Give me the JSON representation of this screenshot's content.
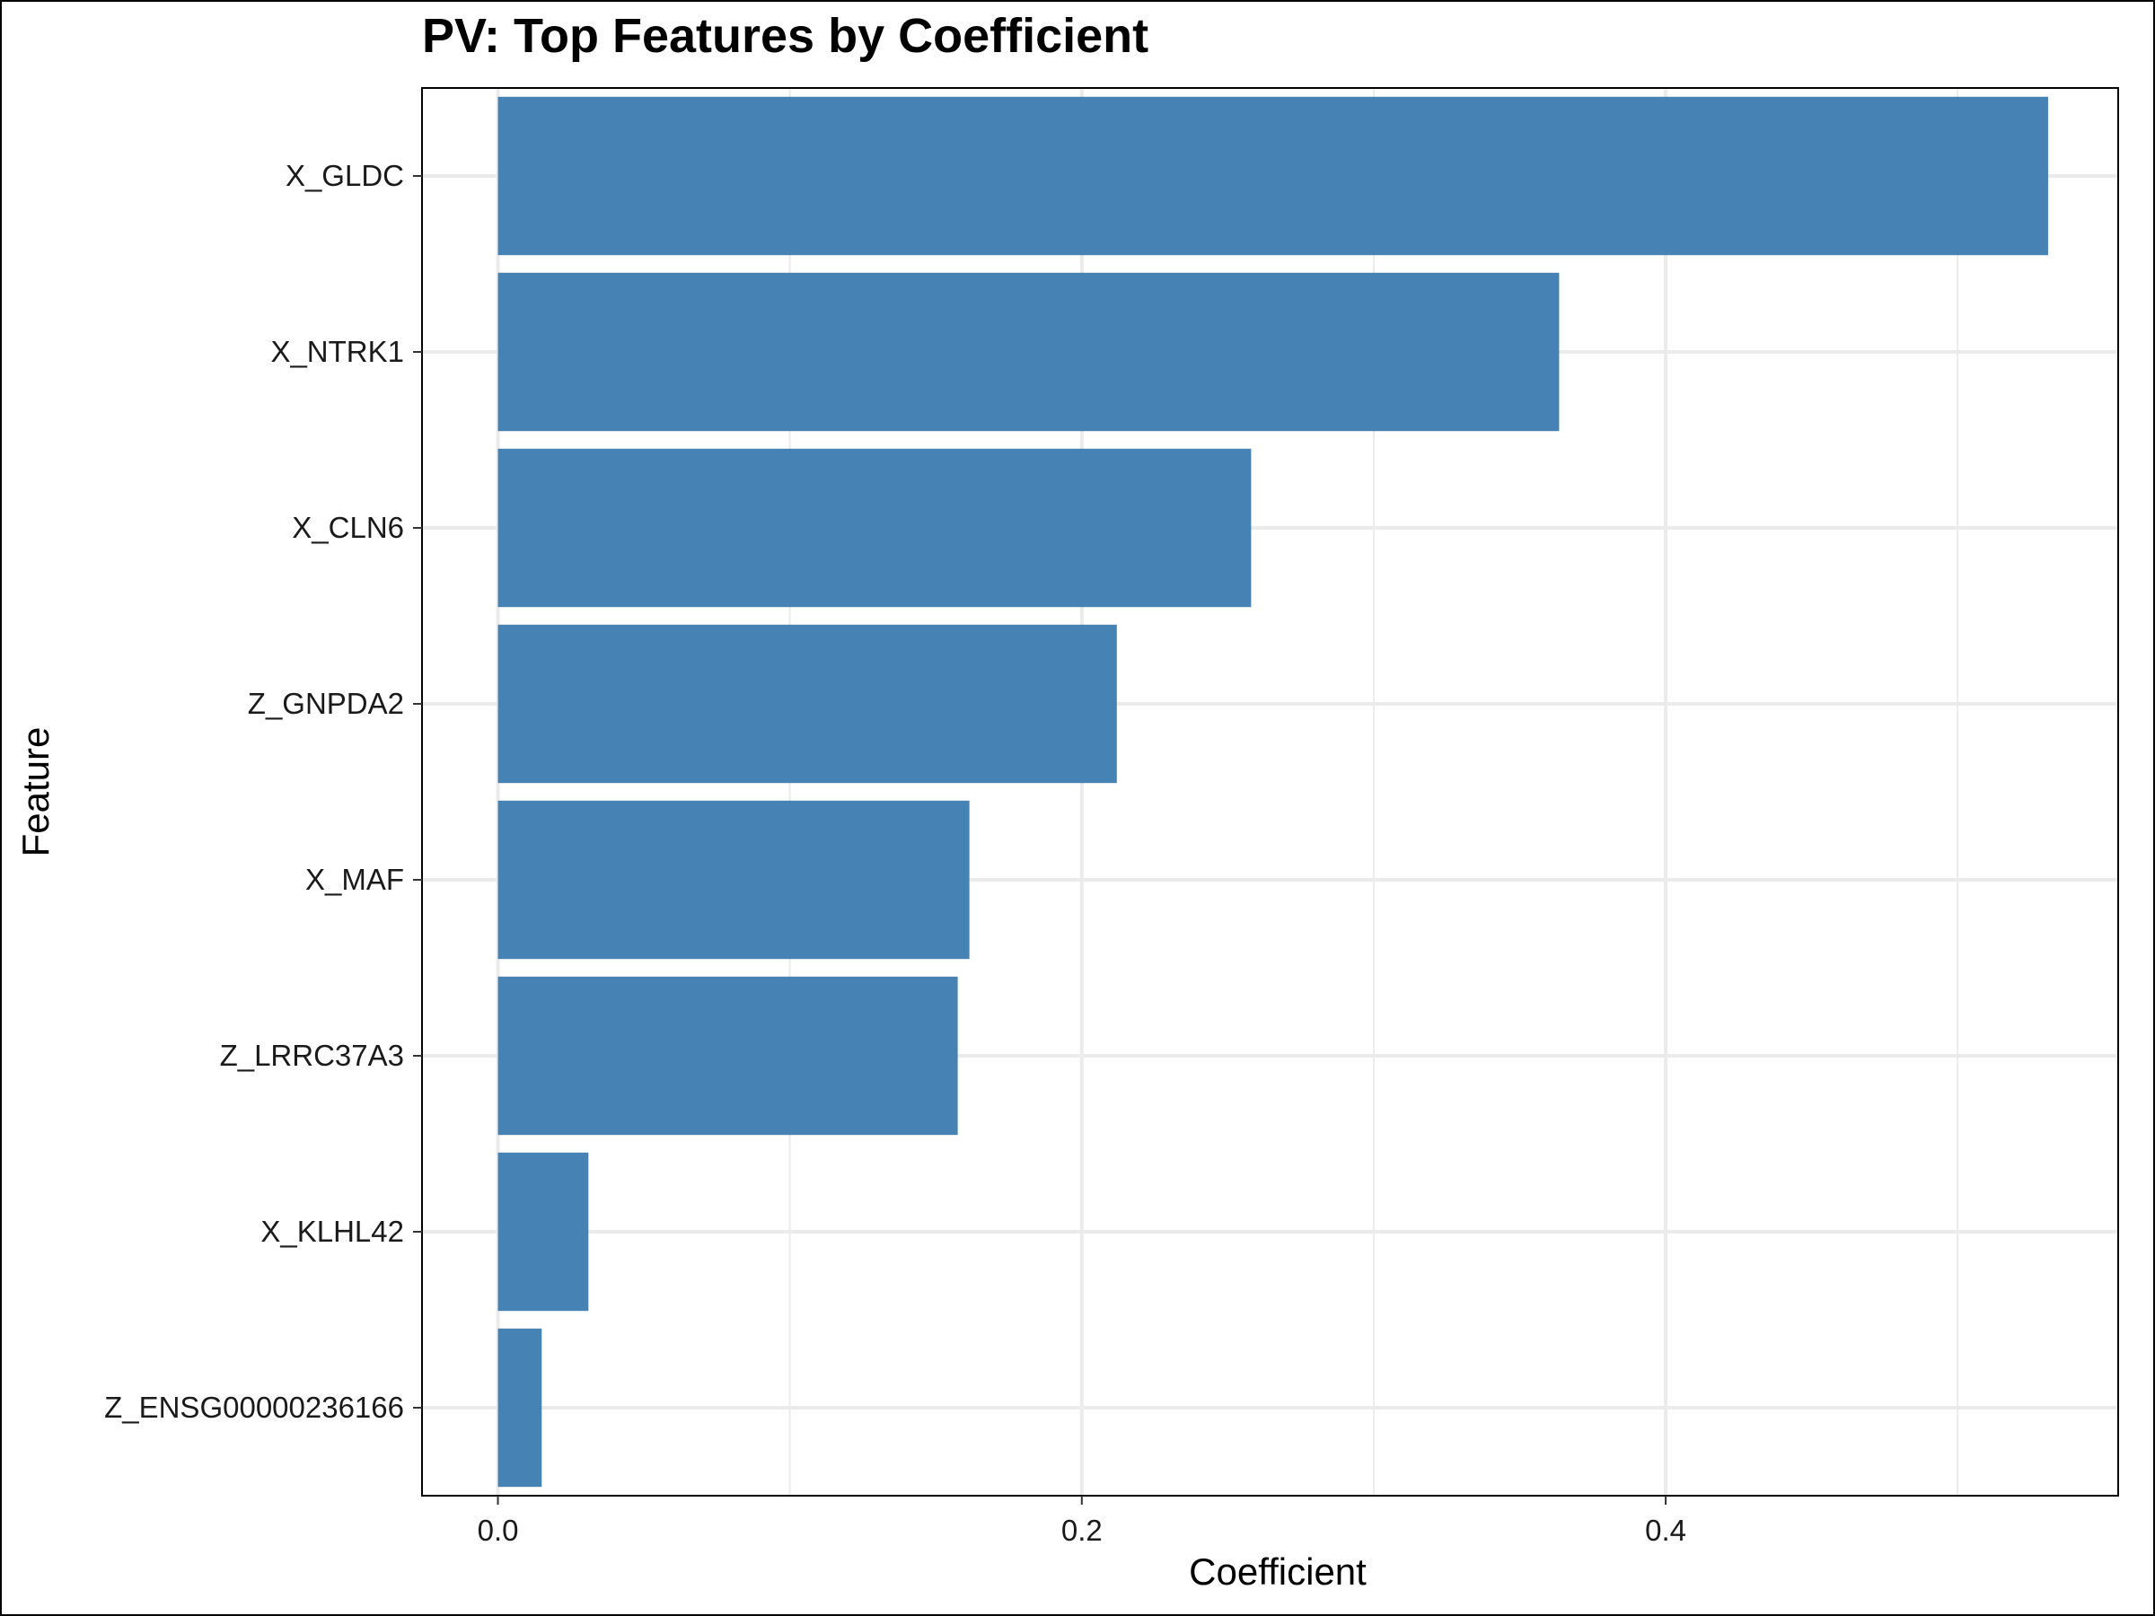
{
  "chart_data": {
    "type": "bar",
    "orientation": "horizontal",
    "title": "PV: Top Features by Coefficient",
    "xlabel": "Coefficient",
    "ylabel": "Feature",
    "categories": [
      "X_GLDC",
      "X_NTRK1",
      "X_CLN6",
      "Z_GNPDA2",
      "X_MAF",
      "Z_LRRC37A3",
      "X_KLHL42",
      "Z_ENSG00000236166"
    ],
    "values": [
      0.531,
      0.3635,
      0.258,
      0.212,
      0.1615,
      0.1575,
      0.031,
      0.015
    ],
    "xlim": [
      -0.026,
      0.555
    ],
    "xticks": [
      0.0,
      0.2,
      0.4
    ],
    "xtick_labels": [
      "0.0",
      "0.2",
      "0.4"
    ],
    "grid": true,
    "legend": "none",
    "bar_color": "#4682B4",
    "grid_color": "#EBEBEB",
    "frame_color": "#000000"
  }
}
